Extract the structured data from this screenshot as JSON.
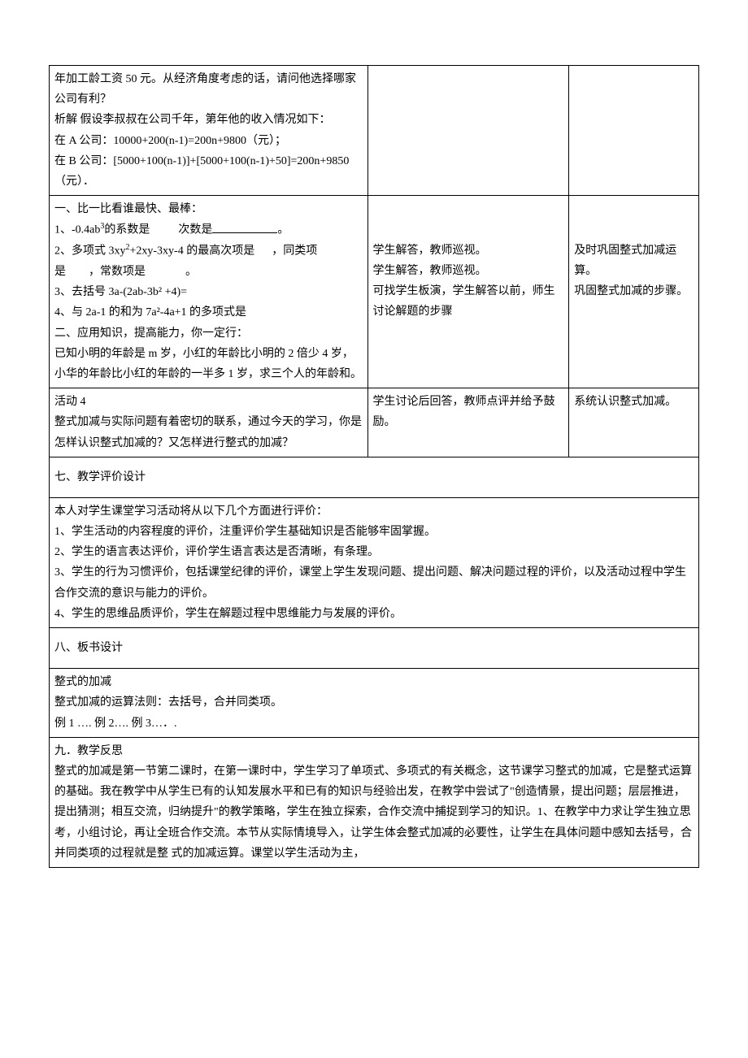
{
  "row1": {
    "col1_line1": "年加工龄工资 50 元。从经济角度考虑的话，请问他选择哪家公司有利？",
    "col1_line2": "析解 假设李叔叔在公司千年，第年他的收入情况如下：",
    "col1_line3": "在 A 公司：10000+200(n-1)=200n+9800（元）；",
    "col1_line4": "  在 B 公司：[5000+100(n-1)]+[5000+100(n-1)+50]=200n+9850（元）．",
    "col2": "",
    "col3": ""
  },
  "row2": {
    "col1_header": "  一、比一比看谁最快、最棒：",
    "col1_q1_a": "1、-0.4ab",
    "col1_q1_b": "的系数是",
    "col1_q1_c": "次数是",
    "col1_q1_d": "。",
    "col1_q2_a": "2、多项式 3xy",
    "col1_q2_b": "+2xy-3xy-4 的最高次项是",
    "col1_q2_c": "，同类项是",
    "col1_q2_d": "，常数项是",
    "col1_q2_e": "。",
    "col1_q3": "3、去括号 3a-(2ab-3b²  +4)=",
    "col1_q4": "4、与 2a-1 的和为 7a²-4a+1 的多项式是",
    "col1_section2": "二、应用知识，提高能力，你一定行：",
    "col1_problem": "已知小明的年龄是 m 岁，小红的年龄比小明的 2 倍少 4 岁，小华的年龄比小红的年龄的一半多 1 岁，求三个人的年龄和。",
    "col2_line1": "学生解答，教师巡视。",
    "col2_line2": "学生解答，教师巡视。",
    "col2_line3": "可找学生板演，学生解答以前，师生讨论解题的步骤",
    "col3_line1": "及时巩固整式加减运算。",
    "col3_line2": "巩固整式加减的步骤。"
  },
  "row3": {
    "col1_line1": "活动 4",
    "col1_line2": "整式加减与实际问题有着密切的联系，通过今天的学习，你是怎样认识整式加减的？又怎样进行整式的加减？",
    "col2": "学生讨论后回答，教师点评并给予鼓励。",
    "col3": "系统认识整式加减。"
  },
  "section7_header": "七、教学评价设计",
  "section7_body": {
    "line1": "本人对学生课堂学习活动将从以下几个方面进行评价：",
    "line2": "1、学生活动的内容程度的评价，注重评价学生基础知识是否能够牢固掌握。",
    "line3": "2、学生的语言表达评价，评价学生语言表达是否清晰，有条理。",
    "line4": "3、学生的行为习惯评价，包括课堂纪律的评价，课堂上学生发现问题、提出问题、解决问题过程的评价，以及活动过程中学生合作交流的意识与能力的评价。",
    "line5": "4、学生的思维品质评价，学生在解题过程中思维能力与发展的评价。"
  },
  "section8_header": "八、板书设计",
  "section8_body": {
    "line1": "整式的加减",
    "line2": "整式加减的运算法则：去括号，合并同类项。",
    "line3": "例 1        ….             例 2….         例 3…．."
  },
  "section9_header": "九．教学反思",
  "section9_body": "整式的加减是第一节第二课时，在第一课时中，学生学习了单项式、多项式的有关概念，这节课学习整式的加减，它是整式运算的基础。我在教学中从学生已有的认知发展水平和已有的知识与经验出发，在教学中尝试了\"创造情景，提出问题；层层推进，提出猜测；相互交流，归纳提升\"的教学策略，学生在独立探索，合作交流中捕捉到学习的知识。1、在教学中力求让学生独立思考，小组讨论，再让全班合作交流。本节从实际情境导入，让学生体会整式加减的必要性，让学生在具体问题中感知去括号，合并同类项的过程就是整 式的加减运算。课堂以学生活动为主，"
}
